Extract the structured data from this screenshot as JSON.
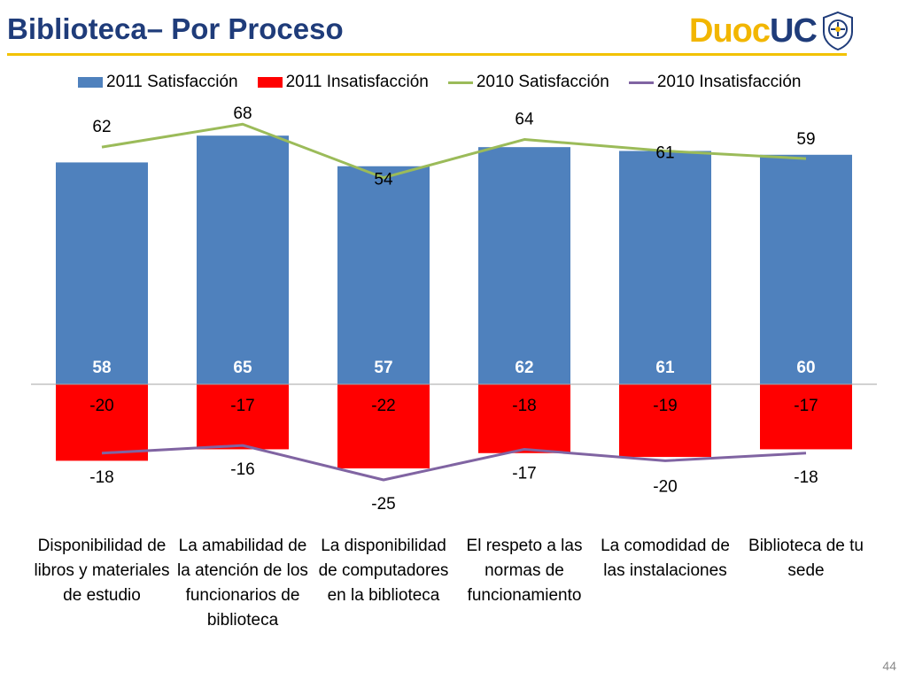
{
  "slide": {
    "title": "Biblioteca– Por Proceso",
    "page_number": "44"
  },
  "logo": {
    "word1": "Duoc",
    "word2": "UC",
    "duoc_color": "#f2b600",
    "uc_color": "#1f3c7a",
    "seal_icon": "university-seal-icon"
  },
  "colors": {
    "title": "#1f3c7a",
    "rule": "#f2c200"
  },
  "chart_data": {
    "type": "bar",
    "categories": [
      "Disponibilidad de libros y materiales de estudio",
      "La amabilidad de la atención de los funcionarios de biblioteca",
      "La disponibilidad de computadores en la biblioteca",
      "El respeto a las normas de funcionamiento",
      "La comodidad de las instalaciones",
      "Biblioteca de tu sede"
    ],
    "series": [
      {
        "name": "2011 Satisfacción",
        "kind": "bar",
        "color": "#4f81bd",
        "values": [
          58,
          65,
          57,
          62,
          61,
          60
        ]
      },
      {
        "name": "2011 Insatisfacción",
        "kind": "bar",
        "color": "#ff0000",
        "values": [
          -20,
          -17,
          -22,
          -18,
          -19,
          -17
        ]
      },
      {
        "name": "2010 Satisfacción",
        "kind": "line",
        "color": "#9bbb59",
        "values": [
          62,
          68,
          54,
          64,
          61,
          59
        ]
      },
      {
        "name": "2010 Insatisfacción",
        "kind": "line",
        "color": "#8064a2",
        "values": [
          -18,
          -16,
          -25,
          -17,
          -20,
          -18
        ]
      }
    ],
    "legend_position": "top",
    "grid": false,
    "ylim": [
      -30,
      73
    ]
  }
}
